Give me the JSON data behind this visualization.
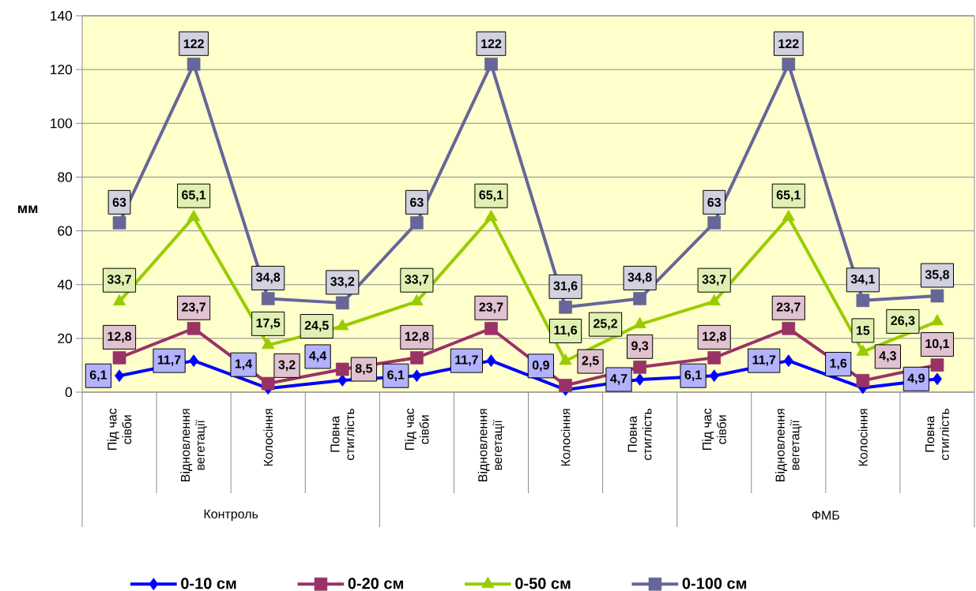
{
  "chart_data": {
    "type": "line",
    "ylabel": "мм",
    "categories": [
      "Під час сівби",
      "Відновлення вегетації",
      "Колосіння",
      "Повна стиглість",
      "Під час сівби",
      "Відновлення вегетації",
      "Колосіння",
      "Повна стиглість",
      "Під час сівби",
      "Відновлення вегетації",
      "Колосіння",
      "Повна стиглість"
    ],
    "annotations": [
      "Контроль",
      null,
      "ФМБ"
    ],
    "series": [
      {
        "name": "0-10 см",
        "color": "#0000ff",
        "marker": "diamond",
        "values": [
          6.1,
          11.7,
          1.4,
          4.4,
          6.1,
          11.7,
          0.9,
          4.7,
          6.1,
          11.7,
          1.6,
          4.9
        ],
        "value_labels": [
          "6,1",
          "11,7",
          "1,4",
          "4,4",
          "6,1",
          "11,7",
          "0,9",
          "4,7",
          "6,1",
          "11,7",
          "1,6",
          "4,9"
        ]
      },
      {
        "name": "0-20 см",
        "color": "#993366",
        "marker": "square",
        "values": [
          12.8,
          23.7,
          3.2,
          8.5,
          12.8,
          23.7,
          2.5,
          9.3,
          12.8,
          23.7,
          4.3,
          10.1
        ],
        "value_labels": [
          "12,8",
          "23,7",
          "3,2",
          "8,5",
          "12,8",
          "23,7",
          "2,5",
          "9,3",
          "12,8",
          "23,7",
          "4,3",
          "10,1"
        ]
      },
      {
        "name": "0-50 см",
        "color": "#99cc00",
        "marker": "triangle",
        "values": [
          33.7,
          65.1,
          17.5,
          24.5,
          33.7,
          65.1,
          11.6,
          25.2,
          33.7,
          65.1,
          15,
          26.3
        ],
        "value_labels": [
          "33,7",
          "65,1",
          "17,5",
          "24,5",
          "33,7",
          "65,1",
          "11,6",
          "25,2",
          "33,7",
          "65,1",
          "15",
          "26,3"
        ]
      },
      {
        "name": "0-100 см",
        "color": "#666699",
        "marker": "square",
        "values": [
          63,
          122,
          34.8,
          33.2,
          63,
          122,
          31.6,
          34.8,
          63,
          122,
          34.1,
          35.8
        ],
        "value_labels": [
          "63",
          "122",
          "34,8",
          "33,2",
          "63",
          "122",
          "31,6",
          "34,8",
          "63",
          "122",
          "34,1",
          "35,8"
        ]
      }
    ],
    "ylim": [
      0,
      140
    ],
    "yticks": [
      0,
      20,
      40,
      60,
      80,
      100,
      120,
      140
    ],
    "grid": "y",
    "legend": "bottom"
  }
}
